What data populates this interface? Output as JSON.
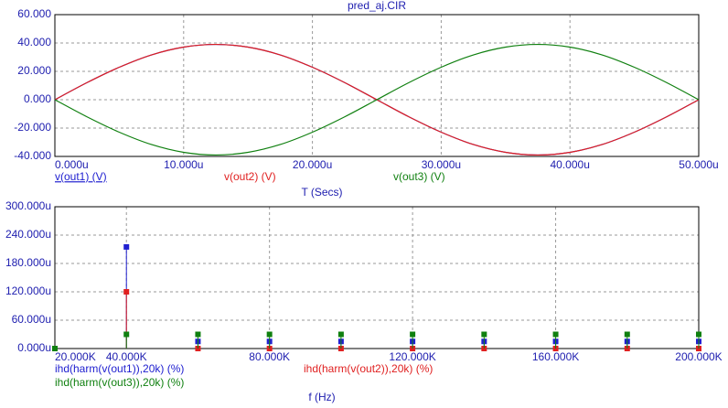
{
  "chart_data": [
    {
      "type": "line",
      "title": "pred_aj.CIR",
      "x_label": "T (Secs)",
      "x": [
        0,
        2.5,
        5,
        7.5,
        10,
        12.5,
        15,
        17.5,
        20,
        22.5,
        25,
        27.5,
        30,
        32.5,
        35,
        37.5,
        40,
        42.5,
        45,
        47.5,
        50
      ],
      "series": [
        {
          "name": "v(out1) (V)",
          "color": "#2020d0",
          "values": [
            0,
            12.1,
            22.9,
            31.6,
            37.1,
            39,
            37.1,
            31.6,
            22.9,
            12.1,
            0,
            -12.1,
            -22.9,
            -31.6,
            -37.1,
            -39,
            -37.1,
            -31.6,
            -22.9,
            -12.1,
            0
          ]
        },
        {
          "name": "v(out2) (V)",
          "color": "#e02020",
          "values": [
            0,
            12.1,
            22.9,
            31.6,
            37.1,
            39,
            37.1,
            31.6,
            22.9,
            12.1,
            0,
            -12.1,
            -22.9,
            -31.6,
            -37.1,
            -39,
            -37.1,
            -31.6,
            -22.9,
            -12.1,
            0
          ]
        },
        {
          "name": "v(out3) (V)",
          "color": "#108010",
          "values": [
            0,
            -12.1,
            -22.9,
            -31.6,
            -37.1,
            -39,
            -37.1,
            -31.6,
            -22.9,
            -12.1,
            0,
            12.1,
            22.9,
            31.6,
            37.1,
            39,
            37.1,
            31.6,
            22.9,
            12.1,
            0
          ]
        }
      ],
      "xlim": [
        0,
        50
      ],
      "xticks": [
        {
          "value": 0,
          "label": "0.000u"
        },
        {
          "value": 10,
          "label": "10.000u"
        },
        {
          "value": 20,
          "label": "20.000u"
        },
        {
          "value": 30,
          "label": "30.000u"
        },
        {
          "value": 40,
          "label": "40.000u"
        },
        {
          "value": 50,
          "label": "50.000u"
        }
      ],
      "ylim": [
        -40,
        60
      ],
      "yticks": [
        {
          "value": 60,
          "label": "60.000"
        },
        {
          "value": 40,
          "label": "40.000"
        },
        {
          "value": 20,
          "label": "20.000"
        },
        {
          "value": 0,
          "label": "0.000"
        },
        {
          "value": -20,
          "label": "-20.000"
        },
        {
          "value": -40,
          "label": "-40.000"
        }
      ],
      "grid": true
    },
    {
      "type": "stem",
      "x_label": "f (Hz)",
      "x": [
        20000,
        40000,
        60000,
        80000,
        100000,
        120000,
        140000,
        160000,
        180000,
        200000
      ],
      "series": [
        {
          "name": "ihd(harm(v(out1)),20k) (%)",
          "color": "#2020d0",
          "values": [
            0,
            215,
            15,
            15,
            15,
            15,
            15,
            15,
            15,
            15
          ]
        },
        {
          "name": "ihd(harm(v(out2)),20k) (%)",
          "color": "#e02020",
          "values": [
            0,
            120,
            0,
            0,
            0,
            0,
            0,
            0,
            0,
            0
          ]
        },
        {
          "name": "ihd(harm(v(out3)),20k) (%)",
          "color": "#108010",
          "values": [
            0,
            30,
            30,
            30,
            30,
            30,
            30,
            30,
            30,
            30
          ]
        }
      ],
      "xlim": [
        20000,
        200000
      ],
      "xticks": [
        {
          "value": 20000,
          "label": "20.000K"
        },
        {
          "value": 40000,
          "label": "40.000K"
        },
        {
          "value": 80000,
          "label": "80.000K"
        },
        {
          "value": 120000,
          "label": "120.000K"
        },
        {
          "value": 160000,
          "label": "160.000K"
        },
        {
          "value": 200000,
          "label": "200.000K"
        }
      ],
      "ylim": [
        0,
        300
      ],
      "yticks": [
        {
          "value": 300,
          "label": "300.000u"
        },
        {
          "value": 240,
          "label": "240.000u"
        },
        {
          "value": 180,
          "label": "180.000u"
        },
        {
          "value": 120,
          "label": "120.000u"
        },
        {
          "value": 60,
          "label": "60.000u"
        },
        {
          "value": 0,
          "label": "0.000u"
        }
      ],
      "grid": true
    }
  ]
}
